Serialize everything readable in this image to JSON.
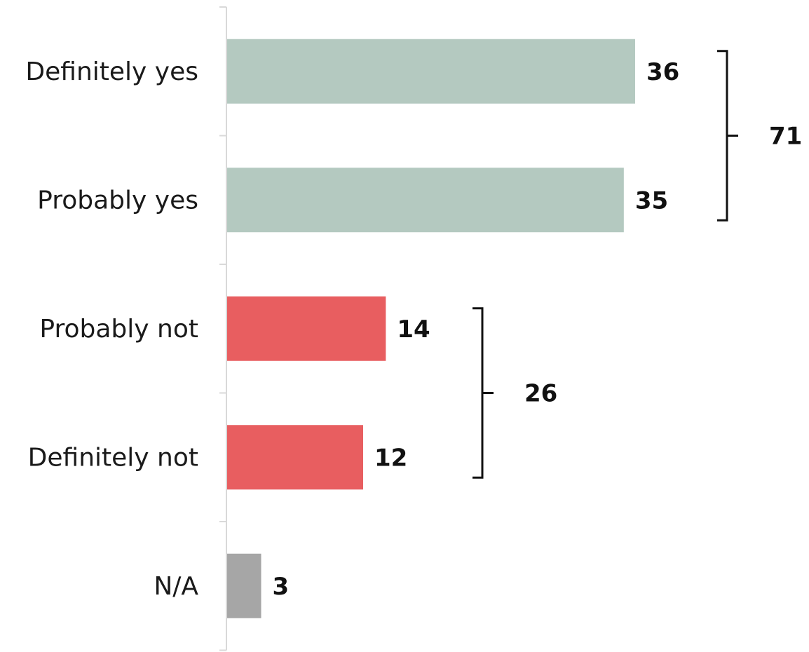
{
  "chart_data": {
    "type": "bar",
    "orientation": "horizontal",
    "categories": [
      "Definitely yes",
      "Probably yes",
      "Probably not",
      "Definitely not",
      "N/A"
    ],
    "values": [
      36,
      35,
      14,
      12,
      3
    ],
    "value_labels": [
      "36",
      "35",
      "14",
      "12",
      "3"
    ],
    "colors": [
      "#b4c9c0",
      "#b4c9c0",
      "#e85e60",
      "#e85e60",
      "#a6a6a6"
    ],
    "xlim": [
      0,
      36
    ],
    "grid": false,
    "legend": "none",
    "title": "",
    "xlabel": "",
    "ylabel": "",
    "groups": [
      {
        "label": "71",
        "value": 71,
        "from": 0,
        "to": 1
      },
      {
        "label": "26",
        "value": 26,
        "from": 2,
        "to": 3
      }
    ]
  }
}
